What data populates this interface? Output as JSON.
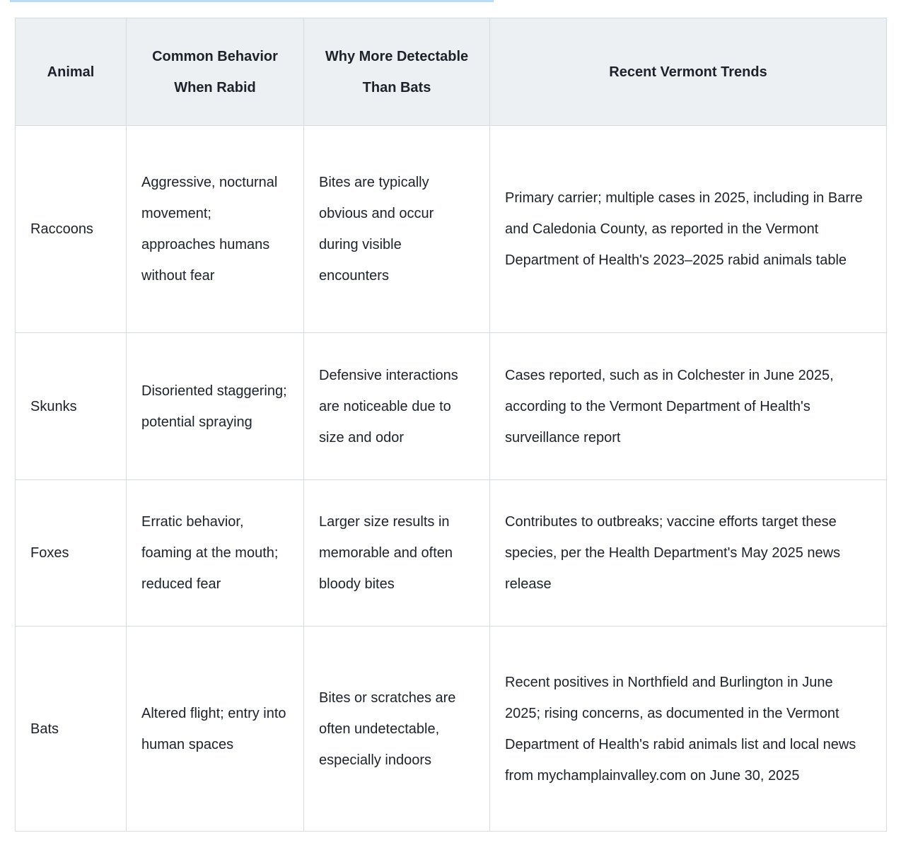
{
  "colors": {
    "selection_highlight": "#b8dcf5",
    "header_background": "#edf0f2",
    "border": "#d6dbe0",
    "text": "#1c222b"
  },
  "table": {
    "headers": [
      "Animal",
      "Common Behavior When Rabid",
      "Why More Detectable Than Bats",
      "Recent Vermont Trends"
    ],
    "rows": [
      {
        "animal": "Raccoons",
        "behavior": "Aggressive, nocturnal movement; approaches humans without fear",
        "detectable": "Bites are typically obvious and occur during visible encounters",
        "trends": "Primary carrier; multiple cases in 2025, including in Barre and Caledonia County, as reported in the Vermont Department of Health's 2023–2025 rabid animals table"
      },
      {
        "animal": "Skunks",
        "behavior": "Disoriented staggering; potential spraying",
        "detectable": "Defensive interactions are noticeable due to size and odor",
        "trends": "Cases reported, such as in Colchester in June 2025, according to the Vermont Department of Health's surveillance report"
      },
      {
        "animal": "Foxes",
        "behavior": "Erratic behavior, foaming at the mouth; reduced fear",
        "detectable": "Larger size results in memorable and often bloody bites",
        "trends": "Contributes to outbreaks; vaccine efforts target these species, per the Health Department's May 2025 news release"
      },
      {
        "animal": "Bats",
        "behavior": "Altered flight; entry into human spaces",
        "detectable": "Bites or scratches are often undetectable, especially indoors",
        "trends": "Recent positives in Northfield and Burlington in June 2025; rising concerns, as documented in the Vermont Department of Health's rabid animals list and local news from mychamplainvalley.com on June 30, 2025"
      }
    ]
  }
}
